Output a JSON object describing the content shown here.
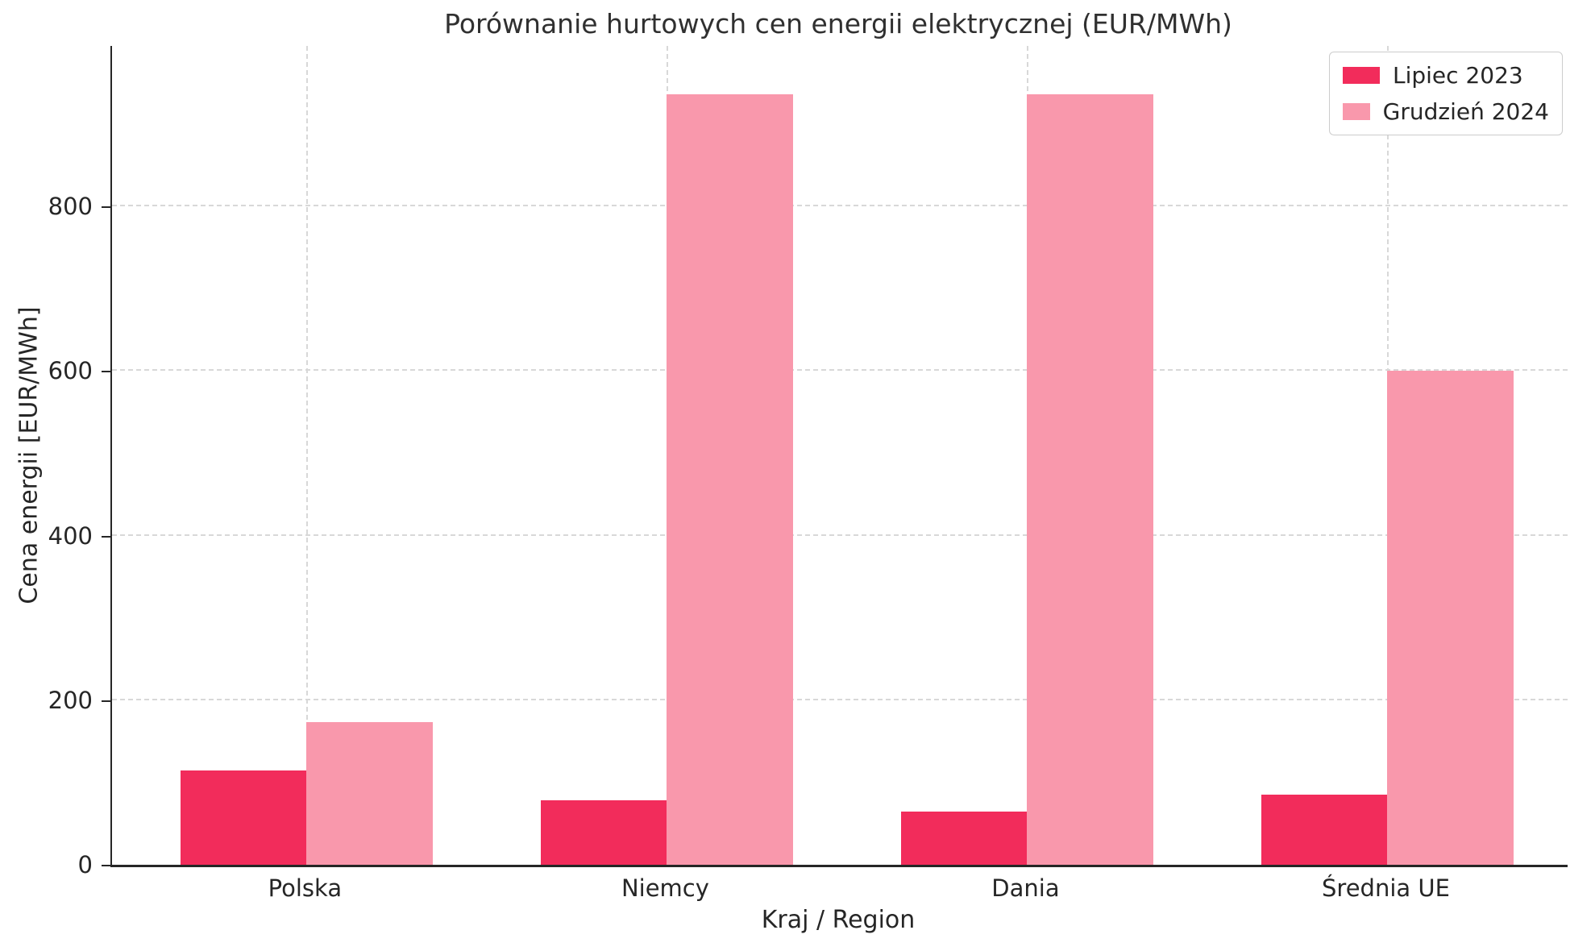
{
  "title": "Porównanie hurtowych cen energii elektrycznej (EUR/MWh)",
  "x_axis_label": "Kraj / Region",
  "y_axis_label": "Cena energii [EUR/MWh]",
  "colors": {
    "series_lipiec": "#F22C5B",
    "series_grudzien": "#F998AC",
    "grid": "#D8D8D8",
    "spine": "#262626",
    "text": "#262626",
    "legend_border": "#CCCCCC",
    "background": "#FFFFFF"
  },
  "legend": {
    "entries": [
      "Lipiec 2023",
      "Grudzień 2024"
    ]
  },
  "chart_data": {
    "type": "bar",
    "title": "Porównanie hurtowych cen energii elektrycznej (EUR/MWh)",
    "xlabel": "Kraj / Region",
    "ylabel": "Cena energii [EUR/MWh]",
    "categories": [
      "Polska",
      "Niemcy",
      "Dania",
      "Średnia UE"
    ],
    "series": [
      {
        "name": "Lipiec 2023",
        "color": "#F22C5B",
        "values": [
          115,
          78,
          65,
          85
        ]
      },
      {
        "name": "Grudzień 2024",
        "color": "#F998AC",
        "values": [
          173,
          936,
          936,
          600
        ]
      }
    ],
    "ylim": [
      0,
      995
    ],
    "yticks": [
      0,
      200,
      400,
      600,
      800
    ],
    "grid": "dashed, both axes",
    "legend_position": "upper right"
  }
}
